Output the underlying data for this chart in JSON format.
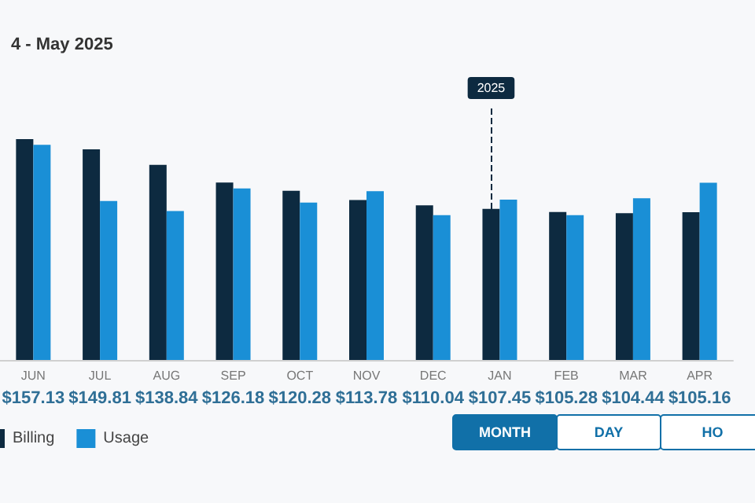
{
  "chart_data": {
    "type": "bar",
    "title": "4 - May 2025",
    "categories": [
      "JUN",
      "JUL",
      "AUG",
      "SEP",
      "OCT",
      "NOV",
      "DEC",
      "JAN",
      "FEB",
      "MAR",
      "APR"
    ],
    "series": [
      {
        "name": "Billing",
        "color": "#0d2a40",
        "values": [
          157.13,
          149.81,
          138.84,
          126.18,
          120.28,
          113.78,
          110.04,
          107.45,
          105.28,
          104.44,
          105.16
        ],
        "value_labels": [
          "$157.13",
          "$149.81",
          "$138.84",
          "$126.18",
          "$120.28",
          "$113.78",
          "$110.04",
          "$107.45",
          "$105.28",
          "$104.44",
          "$105.16"
        ]
      },
      {
        "name": "Usage",
        "color": "#1a8fd6",
        "values": [
          153,
          113,
          106,
          122,
          112,
          120,
          103,
          114,
          103,
          115,
          126
        ]
      }
    ],
    "ref_lines": [
      {
        "axis": "x",
        "value": "JAN",
        "label": "2025",
        "color": "#0d2a40",
        "line_style": "dashed"
      }
    ],
    "annotations": [
      "MONTH",
      "DAY",
      "HO"
    ],
    "legend": "bottom left"
  }
}
